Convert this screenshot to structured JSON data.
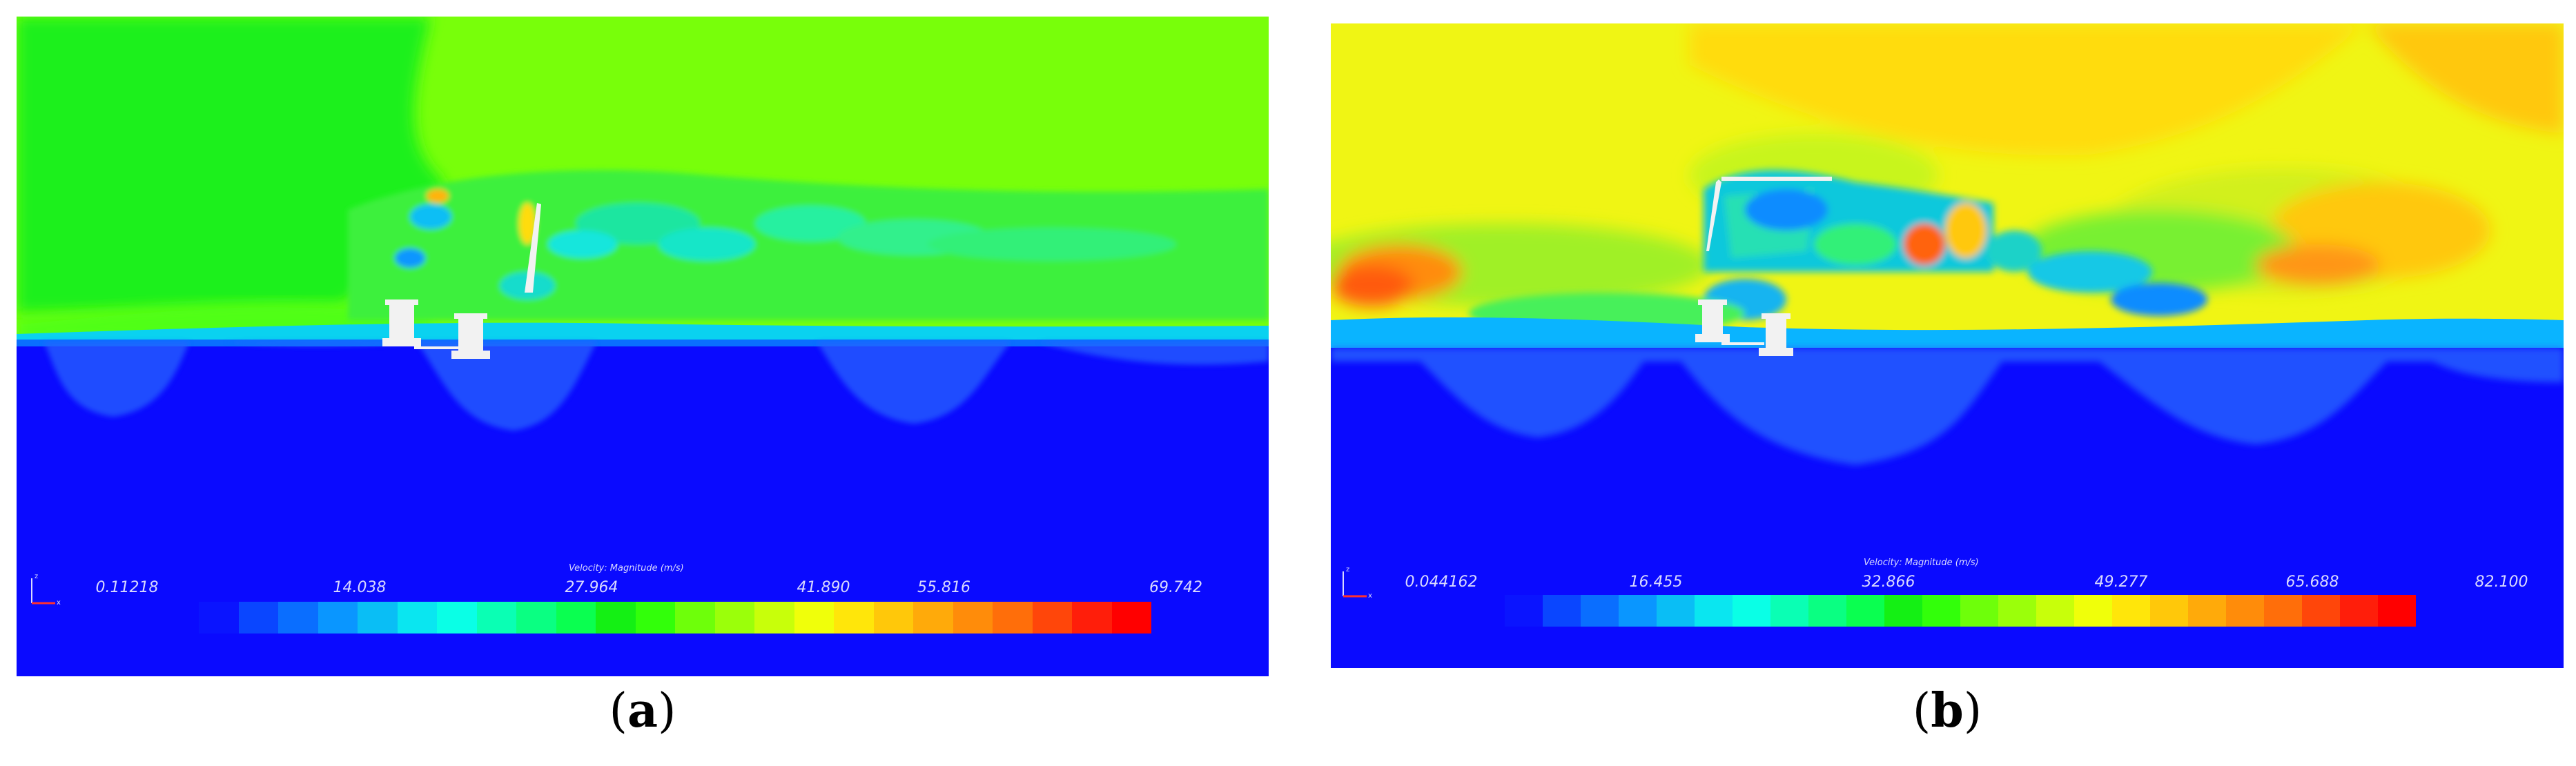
{
  "panels": {
    "a": {
      "legend_title": "Velocity: Magnitude (m/s)",
      "ticks": [
        "0.11218",
        "14.038",
        "27.964",
        "41.890",
        "55.816",
        "69.742"
      ],
      "caption_open": "(",
      "caption_letter": "a",
      "caption_close": ")"
    },
    "b": {
      "legend_title": "Velocity: Magnitude (m/s)",
      "ticks": [
        "0.044162",
        "16.455",
        "32.866",
        "49.277",
        "65.688",
        "82.100"
      ],
      "caption_open": "(",
      "caption_letter": "b",
      "caption_close": ")"
    }
  },
  "colors": {
    "colormap": [
      "#0a14ff",
      "#0a46ff",
      "#0a6eff",
      "#0a96ff",
      "#0abef5",
      "#0ae6f0",
      "#0affe6",
      "#0affb4",
      "#0aff82",
      "#0aff50",
      "#14f014",
      "#32ff0a",
      "#6eff0a",
      "#9bff0a",
      "#c8ff0a",
      "#f0ff0a",
      "#ffe60a",
      "#ffc80a",
      "#ffaa0a",
      "#ff8c0a",
      "#ff6e0a",
      "#ff460a",
      "#ff1e0a",
      "#ff0000"
    ],
    "water": "#0a0aff",
    "structure": "#f2f2f2"
  }
}
